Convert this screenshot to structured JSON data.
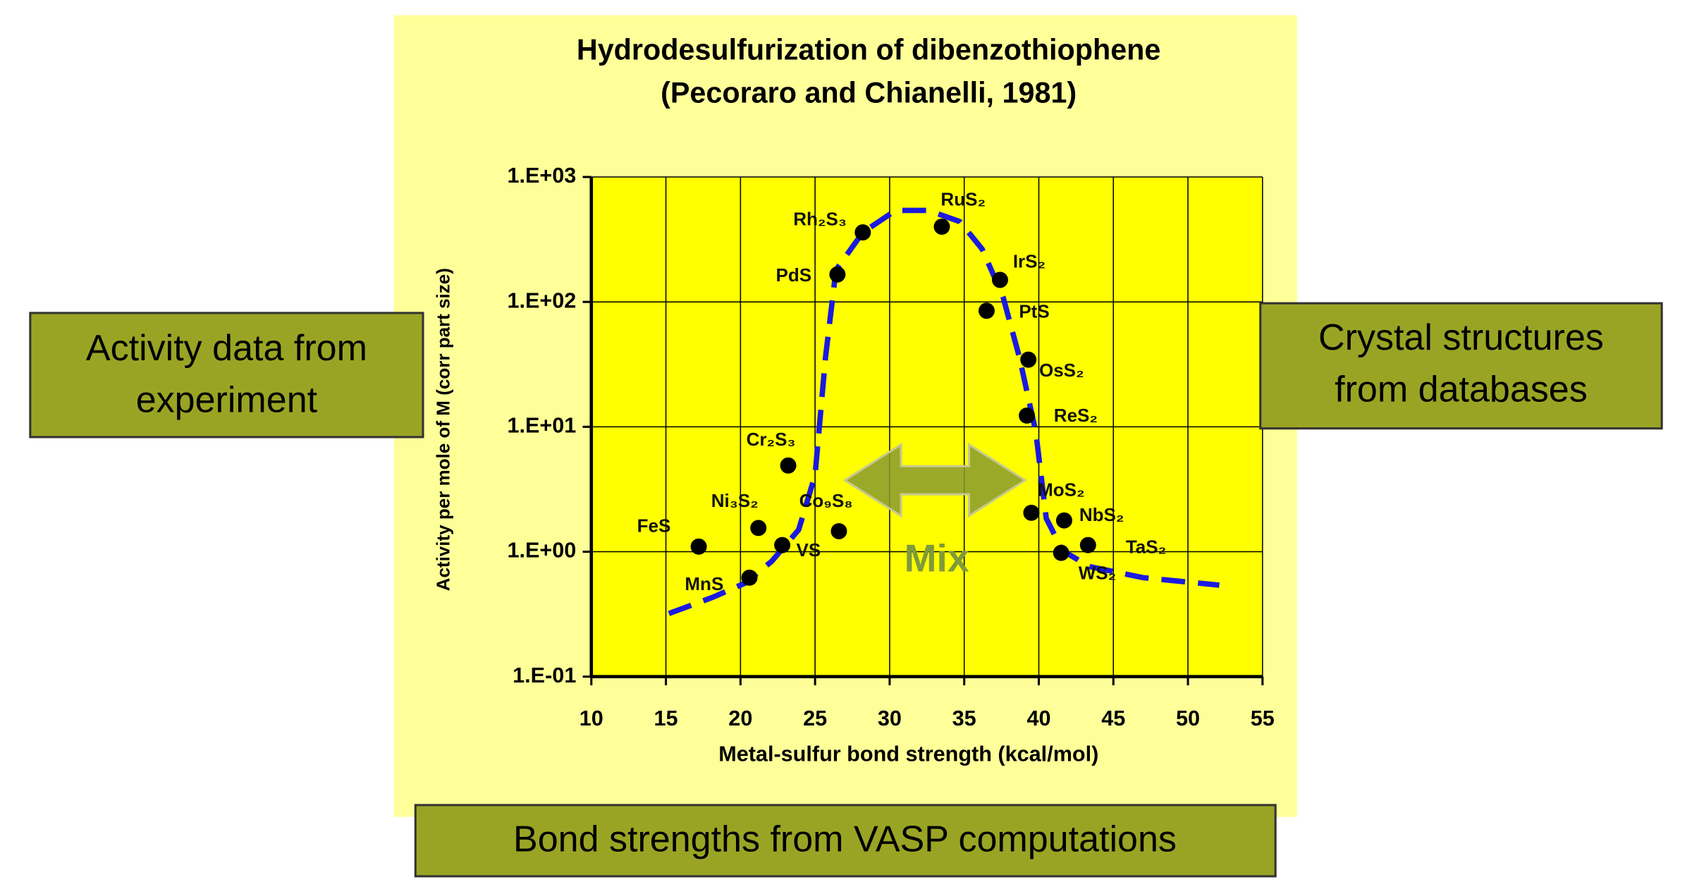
{
  "chart_data": {
    "type": "scatter",
    "title": "Hydrodesulfurization of dibenzothiophene",
    "subtitle": "(Pecoraro and Chianelli, 1981)",
    "xlabel": "Metal-sulfur bond strength (kcal/mol)",
    "ylabel": "Activity per mole of M (corr part size)",
    "annotation": "Mix",
    "xlim": [
      10,
      55
    ],
    "xticks": [
      10,
      15,
      20,
      25,
      30,
      35,
      40,
      45,
      50,
      55
    ],
    "ylim": [
      0.1,
      1000
    ],
    "log_y": true,
    "yticks": [
      {
        "value": 0.1,
        "label": "1.E-01"
      },
      {
        "value": 1,
        "label": "1.E+00"
      },
      {
        "value": 10,
        "label": "1.E+01"
      },
      {
        "value": 100,
        "label": "1.E+02"
      },
      {
        "value": 1000,
        "label": "1.E+03"
      }
    ],
    "grid": true,
    "points": {
      "color": "#000000",
      "labels": [
        "FeS",
        "MnS",
        "Ni₃S₂",
        "VS",
        "Cr₂S₃",
        "Co₉S₈",
        "PdS",
        "Rh₂S₃",
        "RuS₂",
        "IrS₂",
        "PtS",
        "OsS₂",
        "ReS₂",
        "MoS₂",
        "NbS₂",
        "WS₂",
        "TaS₂"
      ],
      "x": [
        17.2,
        20.6,
        21.2,
        22.8,
        23.2,
        26.6,
        26.5,
        28.2,
        33.5,
        37.4,
        36.5,
        39.3,
        39.2,
        39.5,
        41.7,
        41.5,
        43.3
      ],
      "values": [
        1.1,
        0.62,
        1.55,
        1.13,
        4.9,
        1.46,
        166,
        360,
        400,
        150,
        85,
        34.5,
        12.3,
        2.05,
        1.78,
        0.98,
        1.13
      ]
    },
    "curve": {
      "color": "#1a1ae0",
      "style": "dashed",
      "x": [
        15.2,
        18.1,
        20.3,
        22.1,
        23.9,
        25.0,
        25.7,
        26.4,
        28.2,
        30.4,
        32.6,
        34.7,
        36.2,
        37.6,
        38.7,
        39.8,
        40.5,
        41.6,
        43.4,
        47.0,
        52.1
      ],
      "values": [
        0.32,
        0.43,
        0.56,
        0.84,
        1.5,
        4.1,
        36,
        180,
        360,
        540,
        540,
        440,
        265,
        110,
        36,
        9.1,
        1.85,
        1.02,
        0.76,
        0.62,
        0.54
      ]
    }
  },
  "boxes": {
    "left": [
      "Activity  data from",
      "experiment"
    ],
    "right": [
      "Crystal structures",
      "from databases"
    ],
    "bottom": [
      "Bond strengths from VASP computations"
    ]
  }
}
